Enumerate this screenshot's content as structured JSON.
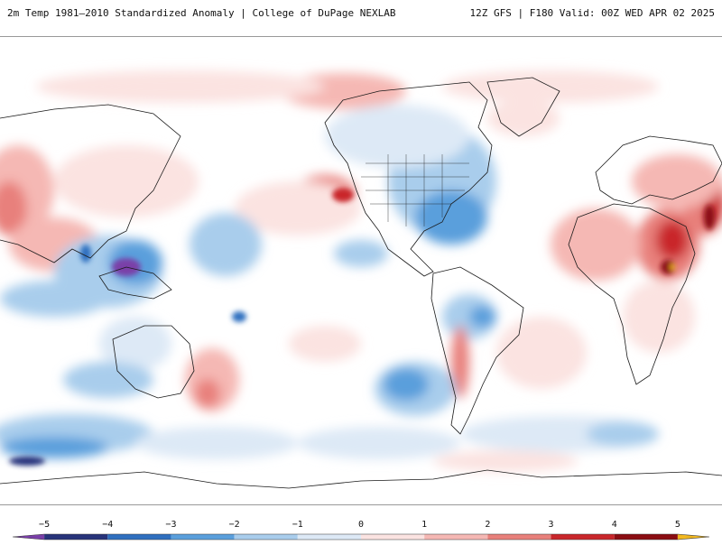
{
  "header": {
    "left_title": "2m Temp 1981–2010 Standardized Anomaly | College of DuPage NEXLAB",
    "right_title": "12Z GFS | F180 Valid: 00Z WED APR 02 2025"
  },
  "colorbar": {
    "tick_labels": [
      "−5",
      "−4",
      "−3",
      "−2",
      "−1",
      "0",
      "1",
      "2",
      "3",
      "4",
      "5"
    ],
    "ticks": [
      -5,
      -4,
      -3,
      -2,
      -1,
      0,
      1,
      2,
      3,
      4,
      5
    ],
    "range": [
      -5.5,
      5.5
    ],
    "colors": {
      "lt_-5": "#7a3fa8",
      "-5_-4": "#27337a",
      "-4_-3": "#2f6fbf",
      "-3_-2": "#5a9fdc",
      "-2_-1": "#a9cdec",
      "-1_0": "#dde9f6",
      "0_1": "#fbe3e1",
      "1_2": "#f5b8b4",
      "2_3": "#e8807b",
      "3_4": "#c9262b",
      "4_5": "#8b0d12",
      "gt_5": "#f2b81f"
    }
  }
}
